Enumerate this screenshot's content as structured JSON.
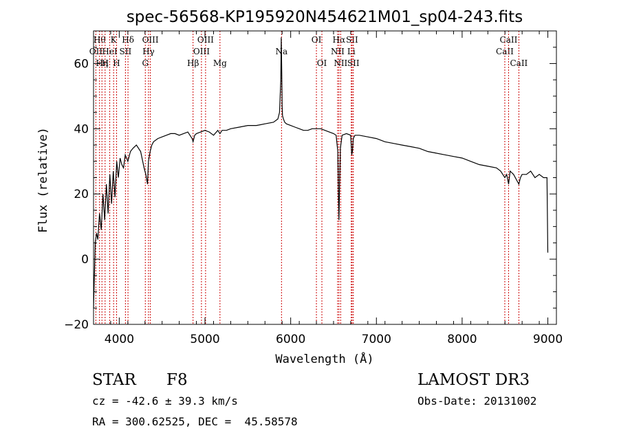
{
  "chart_data": {
    "type": "line",
    "title": "spec-56568-KP195920N454621M01_sp04-243.fits",
    "xlabel": "Wavelength (Å)",
    "ylabel": "Flux (relative)",
    "xlim": [
      3700,
      9100
    ],
    "ylim": [
      -20,
      70
    ],
    "xticks": [
      4000,
      5000,
      6000,
      7000,
      8000,
      9000
    ],
    "yticks": [
      -20,
      0,
      20,
      40,
      60
    ],
    "series": [
      {
        "name": "flux",
        "x": [
          3700,
          3720,
          3735,
          3750,
          3770,
          3790,
          3810,
          3830,
          3850,
          3870,
          3890,
          3910,
          3930,
          3950,
          3970,
          3990,
          4010,
          4030,
          4050,
          4070,
          4100,
          4130,
          4160,
          4200,
          4250,
          4290,
          4310,
          4330,
          4340,
          4360,
          4380,
          4400,
          4450,
          4500,
          4550,
          4600,
          4650,
          4700,
          4750,
          4800,
          4850,
          4861,
          4880,
          4900,
          4950,
          5000,
          5050,
          5100,
          5150,
          5175,
          5200,
          5250,
          5300,
          5400,
          5500,
          5600,
          5700,
          5800,
          5850,
          5870,
          5885,
          5890,
          5893,
          5896,
          5900,
          5905,
          5915,
          5930,
          5950,
          6000,
          6050,
          6100,
          6150,
          6200,
          6250,
          6300,
          6350,
          6400,
          6450,
          6500,
          6530,
          6550,
          6557,
          6563,
          6570,
          6580,
          6600,
          6650,
          6700,
          6712,
          6720,
          6730,
          6750,
          6800,
          6900,
          7000,
          7100,
          7200,
          7300,
          7400,
          7500,
          7600,
          7700,
          7800,
          7900,
          8000,
          8100,
          8200,
          8300,
          8400,
          8450,
          8498,
          8520,
          8542,
          8560,
          8600,
          8662,
          8680,
          8700,
          8750,
          8800,
          8850,
          8900,
          8950,
          8990,
          9000
        ],
        "values": [
          -15,
          5,
          8,
          6,
          14,
          9,
          20,
          12,
          23,
          14,
          26,
          17,
          27,
          19,
          30,
          25,
          31,
          29,
          28,
          32,
          30,
          33,
          34,
          35,
          33,
          28,
          26,
          23,
          30,
          33,
          35,
          36,
          37,
          37.5,
          38,
          38.5,
          38.5,
          38,
          38.5,
          39,
          37,
          36,
          38,
          38.5,
          39,
          39.5,
          39,
          38,
          39.5,
          38.5,
          39.5,
          39.5,
          40,
          40.5,
          41,
          41,
          41.5,
          42,
          43,
          45,
          55,
          68,
          63,
          57,
          47,
          44,
          43,
          42,
          41.5,
          41,
          40.5,
          40,
          39.5,
          39.5,
          40,
          40,
          40,
          39.5,
          39,
          38.5,
          38,
          33,
          20,
          12,
          22,
          34,
          38,
          38.5,
          38,
          32,
          33,
          37,
          38,
          38,
          37.5,
          37,
          36,
          35.5,
          35,
          34.5,
          34,
          33,
          32.5,
          32,
          31.5,
          31,
          30,
          29,
          28.5,
          28,
          27,
          25,
          26,
          23,
          27,
          26,
          23,
          25,
          26,
          26,
          27,
          25,
          26,
          25,
          25,
          2
        ]
      }
    ],
    "line_markers": [
      {
        "wavelength": 3727,
        "label": "OII",
        "row": 2
      },
      {
        "wavelength": 3770,
        "label": "Hθ",
        "row": 1
      },
      {
        "wavelength": 3798,
        "label": "Hη",
        "row": 3
      },
      {
        "wavelength": 3835,
        "label": "H",
        "row": 3
      },
      {
        "wavelength": 3889,
        "label": "HeI",
        "row": 2
      },
      {
        "wavelength": 3934,
        "label": "K",
        "row": 1
      },
      {
        "wavelength": 3969,
        "label": "H",
        "row": 3
      },
      {
        "wavelength": 4072,
        "label": "SII",
        "row": 2
      },
      {
        "wavelength": 4102,
        "label": "Hδ",
        "row": 1
      },
      {
        "wavelength": 4304,
        "label": "G",
        "row": 3
      },
      {
        "wavelength": 4341,
        "label": "Hγ",
        "row": 2
      },
      {
        "wavelength": 4363,
        "label": "OIII",
        "row": 1
      },
      {
        "wavelength": 4861,
        "label": "Hβ",
        "row": 3
      },
      {
        "wavelength": 4959,
        "label": "OIII",
        "row": 2
      },
      {
        "wavelength": 5007,
        "label": "OIII",
        "row": 1
      },
      {
        "wavelength": 5175,
        "label": "Mg",
        "row": 3
      },
      {
        "wavelength": 5893,
        "label": "Na",
        "row": 2
      },
      {
        "wavelength": 6300,
        "label": "OI",
        "row": 1
      },
      {
        "wavelength": 6364,
        "label": "OI",
        "row": 3
      },
      {
        "wavelength": 6548,
        "label": "NII",
        "row": 2
      },
      {
        "wavelength": 6563,
        "label": "Hα",
        "row": 1
      },
      {
        "wavelength": 6583,
        "label": "NII",
        "row": 3
      },
      {
        "wavelength": 6707,
        "label": "Li",
        "row": 2
      },
      {
        "wavelength": 6716,
        "label": "SII",
        "row": 1
      },
      {
        "wavelength": 6731,
        "label": "SII",
        "row": 3
      },
      {
        "wavelength": 8498,
        "label": "CaII",
        "row": 2
      },
      {
        "wavelength": 8542,
        "label": "CaII",
        "row": 1
      },
      {
        "wavelength": 8662,
        "label": "CaII",
        "row": 3
      }
    ]
  },
  "info": {
    "object_class": "STAR",
    "subclass": "F8",
    "survey": "LAMOST DR3",
    "redshift_line": "cz = -42.6 ± 39.3 km/s",
    "obs_date_line": "Obs-Date: 20131002",
    "coords_line": "RA = 300.62525, DEC =  45.58578"
  },
  "colors": {
    "line_marker": "#cc0000",
    "spectrum": "#000000",
    "axis": "#000000"
  }
}
